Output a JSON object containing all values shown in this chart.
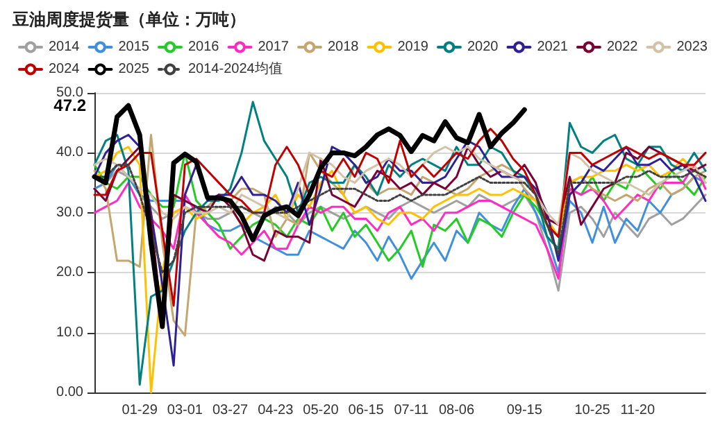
{
  "chart_data": {
    "type": "line",
    "title": "豆油周度提货量（单位：万吨）",
    "categories": [
      null,
      null,
      null,
      null,
      "01-29",
      null,
      null,
      null,
      "03-01",
      null,
      null,
      null,
      "03-27",
      null,
      null,
      null,
      "04-23",
      null,
      null,
      null,
      "05-20",
      null,
      null,
      null,
      "06-15",
      null,
      null,
      null,
      "07-11",
      null,
      null,
      null,
      "08-06",
      null,
      null,
      null,
      null,
      null,
      "09-15",
      null,
      null,
      null,
      null,
      null,
      "10-25",
      null,
      null,
      null,
      "11-20",
      null,
      null,
      null,
      null,
      null,
      null
    ],
    "ylim": [
      0,
      50
    ],
    "yticks": [
      {
        "value": 0,
        "label": "0.00"
      },
      {
        "value": 10,
        "label": "10.0"
      },
      {
        "value": 20,
        "label": "20.0"
      },
      {
        "value": 30,
        "label": "30.0"
      },
      {
        "value": 40,
        "label": "40.0"
      },
      {
        "value": 50,
        "label": "50.0"
      }
    ],
    "grid": "y",
    "legend": "top",
    "marker": "none",
    "line_style": "solid",
    "annotations": [
      "47.2"
    ],
    "series": [
      {
        "name": "2014",
        "color": "#a0a0a0",
        "values": [
          34,
          35,
          37,
          36,
          33,
          31,
          29,
          30,
          31,
          30,
          29,
          29,
          30,
          31,
          30,
          29,
          31,
          30,
          28,
          30,
          31,
          30,
          29,
          30,
          31,
          30,
          29,
          31,
          32,
          31,
          30,
          31,
          32,
          31,
          33,
          32,
          31,
          32,
          33,
          30,
          24,
          17,
          30,
          31,
          29,
          26,
          30,
          28,
          26,
          29,
          30,
          28,
          29,
          31,
          33
        ]
      },
      {
        "name": "2015",
        "color": "#3f8fdc",
        "values": [
          34,
          35,
          38,
          36,
          33,
          32,
          32,
          32,
          32,
          31,
          28,
          27,
          27,
          28,
          26,
          25,
          24,
          23,
          23,
          27,
          26,
          25,
          24,
          27,
          25,
          22,
          26,
          23,
          19,
          22,
          25,
          22,
          27,
          25,
          30,
          28,
          27,
          31,
          34,
          30,
          26,
          20,
          32,
          30,
          25,
          31,
          25,
          29,
          27,
          32,
          30,
          33,
          34,
          36,
          35
        ]
      },
      {
        "name": "2016",
        "color": "#22cc22",
        "values": [
          38,
          35,
          34,
          36,
          36,
          33,
          31,
          31,
          40,
          32,
          30,
          28,
          24,
          26,
          28,
          29,
          28,
          26,
          29,
          28,
          31,
          27,
          30,
          26,
          28,
          25,
          22,
          24,
          27,
          21,
          28,
          27,
          29,
          25,
          29,
          28,
          26,
          30,
          33,
          31,
          28,
          23,
          34,
          33,
          36,
          32,
          35,
          34,
          38,
          36,
          34,
          37,
          35,
          33,
          36
        ]
      },
      {
        "name": "2017",
        "color": "#ff2bc2",
        "values": [
          30,
          31,
          32,
          35,
          31,
          29,
          27,
          24,
          33,
          30,
          28,
          26,
          25,
          23,
          25,
          27,
          24,
          24,
          28,
          31,
          30,
          31,
          31,
          29,
          29,
          27,
          30,
          31,
          28,
          29,
          27,
          30,
          30,
          31,
          32,
          32,
          31,
          30,
          29,
          28,
          24,
          19,
          34,
          33,
          34,
          32,
          29,
          31,
          33,
          32,
          35,
          35,
          35,
          38,
          34
        ]
      },
      {
        "name": "2018",
        "color": "#c4a66e",
        "values": [
          37,
          34,
          22,
          22,
          21,
          43,
          25,
          12,
          9.5,
          30,
          31,
          33,
          32,
          34,
          34,
          33,
          26,
          29,
          28,
          40,
          37,
          35,
          33,
          38,
          35,
          33,
          34,
          34,
          33,
          36,
          35,
          34,
          33,
          34,
          36,
          37,
          38,
          37,
          34,
          32,
          28,
          26,
          35,
          36,
          34,
          33,
          32,
          33,
          32,
          34,
          35,
          33,
          34,
          36,
          37
        ]
      },
      {
        "name": "2019",
        "color": "#ffc000",
        "values": [
          36,
          37,
          40,
          41,
          38,
          0,
          20,
          30,
          31,
          29,
          30,
          33,
          31,
          28,
          30,
          31,
          33,
          29,
          33,
          31,
          35,
          37,
          33,
          30,
          31,
          29,
          28,
          30,
          30,
          29,
          31,
          32,
          33,
          33,
          34,
          33,
          33,
          34,
          33,
          32,
          29,
          26,
          35,
          36,
          36,
          37,
          37,
          38,
          37,
          38,
          36,
          37,
          39,
          37,
          36
        ]
      },
      {
        "name": "2020",
        "color": "#008080",
        "values": [
          38,
          42,
          43,
          37,
          1.3,
          16,
          17,
          22,
          27,
          30,
          32,
          32,
          34,
          40,
          48.5,
          42,
          39,
          36,
          30,
          35,
          36,
          35,
          35,
          38,
          36,
          33,
          38,
          36,
          38,
          39,
          38,
          37,
          41,
          38,
          38,
          41,
          40,
          37,
          36,
          33,
          26,
          24,
          45,
          41,
          40,
          42,
          43,
          39,
          38,
          41,
          41,
          38,
          37,
          40,
          37
        ]
      },
      {
        "name": "2021",
        "color": "#2e2196",
        "values": [
          36,
          40,
          42,
          43,
          41,
          30,
          18,
          4.5,
          33,
          38,
          32,
          33,
          33,
          36,
          33,
          33,
          32,
          30,
          35,
          28,
          34,
          41,
          40,
          38,
          35,
          36,
          39,
          37,
          37,
          35,
          35,
          36,
          39,
          42,
          41,
          38,
          36,
          36,
          36,
          34,
          30,
          22,
          33,
          35,
          38,
          37,
          39,
          41,
          38,
          38,
          39,
          37,
          38,
          36,
          32
        ]
      },
      {
        "name": "2022",
        "color": "#7a0036",
        "values": [
          34,
          32,
          37,
          39,
          41,
          29,
          11,
          33,
          32,
          31,
          30,
          33,
          31,
          28,
          23,
          22,
          27,
          26,
          26,
          25,
          39,
          33,
          32,
          31,
          34,
          37,
          36,
          34,
          35,
          33,
          35,
          34,
          36,
          41,
          38,
          36,
          37,
          36,
          38,
          35,
          29,
          28,
          36,
          28,
          31,
          34,
          35,
          40,
          39,
          41,
          40,
          39,
          38,
          37,
          38
        ]
      },
      {
        "name": "2023",
        "color": "#d2c2a8",
        "values": [
          38,
          39,
          38,
          36,
          34,
          33,
          30,
          29,
          31,
          30,
          30,
          31,
          30,
          33,
          32,
          31,
          30,
          29,
          34,
          40,
          39,
          38,
          36,
          35,
          37,
          38,
          39,
          38,
          36,
          38,
          40,
          41,
          40,
          41,
          39,
          38,
          37,
          36,
          35,
          33,
          30,
          28,
          40,
          39,
          37,
          36,
          35,
          35,
          34,
          33,
          35,
          36,
          37,
          38,
          35
        ]
      },
      {
        "name": "2024",
        "color": "#c00000",
        "values": [
          33,
          33,
          37,
          38,
          40,
          40,
          27,
          14.5,
          38,
          39,
          37,
          35,
          33,
          32,
          30,
          30,
          38,
          41,
          38,
          33,
          37,
          36,
          39,
          36,
          40,
          39,
          35,
          42,
          36,
          38,
          36,
          38,
          40,
          39,
          42,
          44,
          42,
          39,
          37,
          33,
          28,
          26,
          40,
          40,
          38,
          39,
          40,
          41,
          40,
          39,
          40,
          39,
          38,
          38,
          40
        ]
      },
      {
        "name": "2025",
        "color": "#000000",
        "values": [
          36,
          35,
          46,
          47.9,
          43,
          25,
          11,
          38.3,
          39.8,
          38.5,
          32.5,
          32.5,
          32,
          29.5,
          25.5,
          29.5,
          30.5,
          31,
          29.5,
          33,
          37.5,
          40,
          40,
          39.5,
          41,
          43,
          44,
          42.9,
          40.2,
          42.9,
          42,
          45.2,
          42.5,
          41.7,
          46.4,
          41,
          43.3,
          45,
          47.2,
          null,
          null,
          null,
          null,
          null,
          null,
          null,
          null,
          null,
          null,
          null,
          null,
          null,
          null,
          null,
          null
        ]
      },
      {
        "name": "2014-2024均值",
        "color": "#404040",
        "line_style": "dotted",
        "values": [
          36,
          36,
          38,
          38,
          33,
          27,
          20,
          22,
          30,
          31,
          31,
          31,
          31,
          31,
          30,
          30,
          30,
          30,
          31,
          32,
          33,
          34,
          34,
          34,
          33,
          32,
          32,
          33,
          32,
          33,
          33,
          33,
          34,
          35,
          36,
          35,
          35,
          35,
          35,
          33,
          28,
          23,
          35,
          35,
          35,
          35,
          35,
          36,
          36,
          37,
          36,
          36,
          36,
          37,
          36
        ]
      }
    ]
  }
}
